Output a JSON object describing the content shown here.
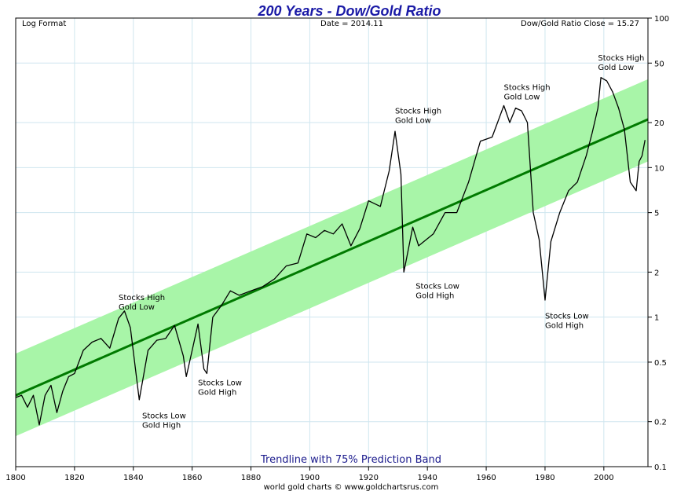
{
  "chart_data": {
    "type": "line",
    "title": "200 Years - Dow/Gold Ratio",
    "top_left_label": "Log Format",
    "top_center_label": "Date = 2014.11",
    "top_right_label": "Dow/Gold Ratio Close = 15.27",
    "band_label": "Trendline with 75% Prediction Band",
    "credit": "world gold charts © www.goldchartsrus.com",
    "x_axis": {
      "range": [
        1800,
        2015
      ],
      "ticks": [
        "1800",
        "1820",
        "1840",
        "1860",
        "1880",
        "1900",
        "1920",
        "1940",
        "1960",
        "1980",
        "2000"
      ]
    },
    "y_axis": {
      "scale": "log",
      "range": [
        0.1,
        100
      ],
      "ticks": [
        "100",
        "50",
        "20",
        "10",
        "5",
        "2",
        "1",
        "0.5",
        "0.2",
        "0.1"
      ]
    },
    "grid": true,
    "colors": {
      "line": "#000000",
      "trend": "#007a00",
      "band": "#a8f5a8",
      "title": "#1a1aa6",
      "grid": "#cfe6ef"
    },
    "trendline": {
      "start": [
        1800,
        0.3
      ],
      "end": [
        2015,
        21
      ]
    },
    "band": {
      "upper": [
        [
          1800,
          0.57
        ],
        [
          2015,
          39
        ]
      ],
      "lower": [
        [
          1800,
          0.16
        ],
        [
          2015,
          11
        ]
      ]
    },
    "series": [
      {
        "x": [
          1800,
          1802,
          1804,
          1806,
          1808,
          1810,
          1812,
          1814,
          1816,
          1818,
          1820,
          1823,
          1826,
          1829,
          1832,
          1835,
          1837,
          1839,
          1842,
          1845,
          1848,
          1851,
          1854,
          1857,
          1858,
          1860,
          1862,
          1864,
          1865,
          1867,
          1870,
          1873,
          1876,
          1880,
          1884,
          1888,
          1892,
          1896,
          1899,
          1902,
          1905,
          1908,
          1911,
          1914,
          1917,
          1920,
          1924,
          1927,
          1929,
          1931,
          1932,
          1935,
          1937,
          1942,
          1946,
          1950,
          1954,
          1958,
          1962,
          1966,
          1968,
          1970,
          1972,
          1974,
          1976,
          1978,
          1980,
          1982,
          1985,
          1988,
          1991,
          1994,
          1996,
          1998,
          1999,
          2001,
          2003,
          2005,
          2007,
          2009,
          2011,
          2012,
          2013,
          2014
        ],
        "y": [
          0.29,
          0.3,
          0.25,
          0.3,
          0.19,
          0.3,
          0.35,
          0.23,
          0.32,
          0.4,
          0.42,
          0.6,
          0.68,
          0.72,
          0.62,
          0.98,
          1.1,
          0.85,
          0.28,
          0.6,
          0.7,
          0.72,
          0.88,
          0.55,
          0.4,
          0.6,
          0.9,
          0.45,
          0.42,
          1.0,
          1.2,
          1.5,
          1.4,
          1.5,
          1.6,
          1.8,
          2.2,
          2.3,
          3.6,
          3.4,
          3.8,
          3.6,
          4.2,
          3.0,
          3.9,
          6.0,
          5.5,
          9.5,
          17.5,
          9.0,
          2.0,
          4.0,
          3.0,
          3.6,
          5.0,
          5.0,
          8.0,
          15,
          16,
          26,
          20,
          25,
          24,
          20,
          5.0,
          3.3,
          1.3,
          3.2,
          5.0,
          7.0,
          8.0,
          12,
          17,
          25,
          40,
          38,
          32,
          25,
          18,
          8.0,
          7.0,
          11,
          12,
          15.27
        ]
      }
    ],
    "annotations": [
      {
        "lines": [
          "Stocks High",
          "Gold Low"
        ],
        "x": 1835,
        "y": 1.3
      },
      {
        "lines": [
          "Stocks Low",
          "Gold High"
        ],
        "x": 1843,
        "y": 0.21
      },
      {
        "lines": [
          "Stocks Low",
          "Gold High"
        ],
        "x": 1862,
        "y": 0.35
      },
      {
        "lines": [
          "Stocks High",
          "Gold Low"
        ],
        "x": 1929,
        "y": 23
      },
      {
        "lines": [
          "Stocks Low",
          "Gold High"
        ],
        "x": 1936,
        "y": 1.55
      },
      {
        "lines": [
          "Stocks High",
          "Gold Low"
        ],
        "x": 1966,
        "y": 33
      },
      {
        "lines": [
          "Stocks Low",
          "Gold High"
        ],
        "x": 1980,
        "y": 0.98
      },
      {
        "lines": [
          "Stocks High",
          "Gold Low"
        ],
        "x": 1998,
        "y": 52
      }
    ]
  }
}
